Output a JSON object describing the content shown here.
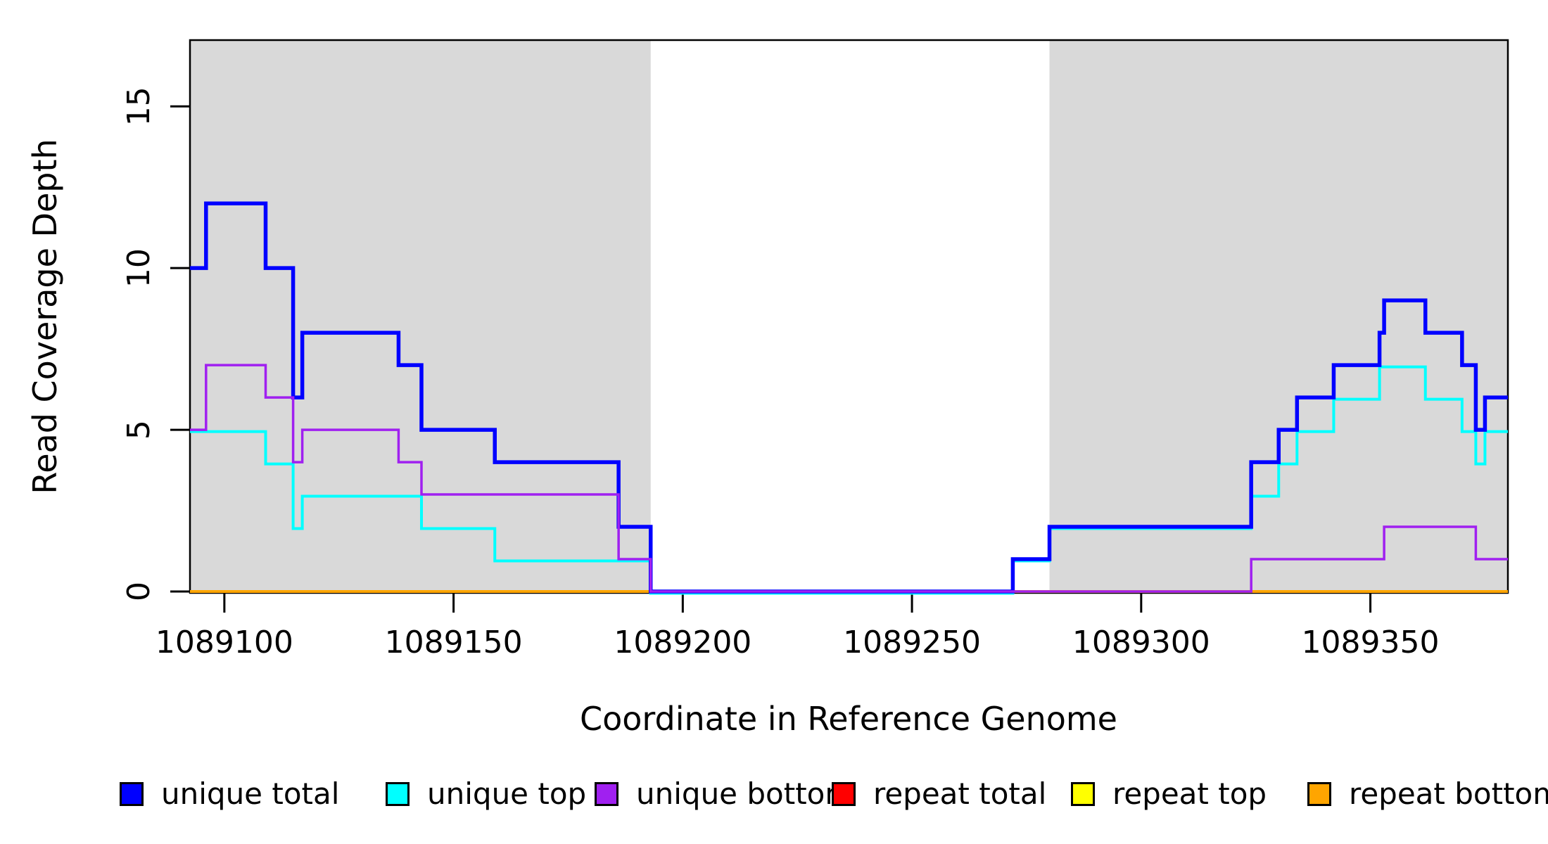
{
  "chart_data": {
    "type": "line-step",
    "title": "",
    "xlabel": "Coordinate in Reference Genome",
    "ylabel": "Read Coverage Depth",
    "xlim": [
      1089092.5,
      1089380
    ],
    "ylim": [
      0,
      17.05
    ],
    "xticks": [
      1089100,
      1089150,
      1089200,
      1089250,
      1089300,
      1089350
    ],
    "yticks": [
      0,
      5,
      10,
      15
    ],
    "grid": false,
    "shade_color": "#d9d9d9",
    "shaded_regions": [
      {
        "x0": 1089092.5,
        "x1": 1089193
      },
      {
        "x0": 1089280,
        "x1": 1089380
      }
    ],
    "series": [
      {
        "name": "unique total",
        "color": "#0000ff",
        "points": [
          [
            1089092.5,
            10
          ],
          [
            1089096,
            12
          ],
          [
            1089109,
            10
          ],
          [
            1089115,
            6
          ],
          [
            1089117,
            8
          ],
          [
            1089138,
            7
          ],
          [
            1089143,
            5
          ],
          [
            1089159,
            4
          ],
          [
            1089186,
            2
          ],
          [
            1089193,
            0
          ],
          [
            1089272,
            1
          ],
          [
            1089280,
            2
          ],
          [
            1089324,
            4
          ],
          [
            1089330,
            5
          ],
          [
            1089334,
            6
          ],
          [
            1089342,
            7
          ],
          [
            1089352,
            8
          ],
          [
            1089353,
            9
          ],
          [
            1089362,
            8
          ],
          [
            1089370,
            7
          ],
          [
            1089373,
            5
          ],
          [
            1089375,
            6
          ]
        ]
      },
      {
        "name": "unique top",
        "color": "#00ffff",
        "points": [
          [
            1089092.5,
            5
          ],
          [
            1089109,
            4
          ],
          [
            1089115,
            2
          ],
          [
            1089117,
            3
          ],
          [
            1089143,
            2
          ],
          [
            1089159,
            1
          ],
          [
            1089193,
            0
          ],
          [
            1089272,
            1
          ],
          [
            1089280,
            2
          ],
          [
            1089324,
            3
          ],
          [
            1089330,
            4
          ],
          [
            1089334,
            5
          ],
          [
            1089342,
            6
          ],
          [
            1089352,
            7
          ],
          [
            1089362,
            6
          ],
          [
            1089370,
            5
          ],
          [
            1089373,
            4
          ],
          [
            1089375,
            5
          ]
        ]
      },
      {
        "name": "unique bottom",
        "color": "#a020f0",
        "points": [
          [
            1089092.5,
            5
          ],
          [
            1089096,
            7
          ],
          [
            1089109,
            6
          ],
          [
            1089115,
            4
          ],
          [
            1089117,
            5
          ],
          [
            1089138,
            4
          ],
          [
            1089143,
            3
          ],
          [
            1089186,
            1
          ],
          [
            1089193,
            0
          ],
          [
            1089324,
            1
          ],
          [
            1089353,
            2
          ],
          [
            1089373,
            1
          ]
        ]
      },
      {
        "name": "repeat total",
        "color": "#ff0000",
        "points": [
          [
            1089092.5,
            0
          ]
        ]
      },
      {
        "name": "repeat top",
        "color": "#ffff00",
        "points": [
          [
            1089092.5,
            0
          ]
        ]
      },
      {
        "name": "repeat bottom",
        "color": "#ffa500",
        "points": [
          [
            1089092.5,
            0
          ]
        ]
      }
    ],
    "legend_position": "bottom"
  },
  "legend": {
    "items": [
      {
        "label": "unique total",
        "color": "#0000ff"
      },
      {
        "label": "unique top",
        "color": "#00ffff"
      },
      {
        "label": "unique bottom",
        "color": "#a020f0"
      },
      {
        "label": "repeat total",
        "color": "#ff0000"
      },
      {
        "label": "repeat top",
        "color": "#ffff00"
      },
      {
        "label": "repeat bottom",
        "color": "#ffa500"
      }
    ]
  }
}
